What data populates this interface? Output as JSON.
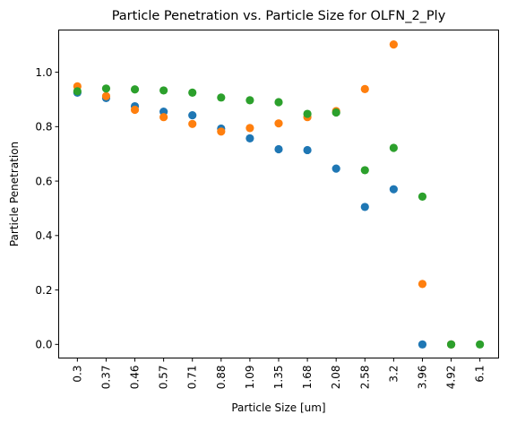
{
  "chart_data": {
    "type": "scatter",
    "title": "Particle Penetration vs. Particle Size for OLFN_2_Ply",
    "xlabel": "Particle Size [um]",
    "ylabel": "Particle Penetration",
    "categories": [
      "0.3",
      "0.37",
      "0.46",
      "0.57",
      "0.71",
      "0.88",
      "1.09",
      "1.35",
      "1.68",
      "2.08",
      "2.58",
      "3.2",
      "3.96",
      "4.92",
      "6.1"
    ],
    "yticks": [
      "0.0",
      "0.2",
      "0.4",
      "0.6",
      "0.8",
      "1.0"
    ],
    "ylim": [
      -0.05,
      1.155
    ],
    "grid": false,
    "series": [
      {
        "color": "#1f77b4",
        "values": [
          0.925,
          0.905,
          0.875,
          0.855,
          0.842,
          0.793,
          0.757,
          0.717,
          0.714,
          0.646,
          0.505,
          0.57,
          0.0,
          0.0,
          null
        ]
      },
      {
        "color": "#ff7f0e",
        "values": [
          0.948,
          0.912,
          0.862,
          0.835,
          0.81,
          0.782,
          0.795,
          0.812,
          0.835,
          0.857,
          0.938,
          1.102,
          0.222,
          0.0,
          null
        ]
      },
      {
        "color": "#2ca02c",
        "values": [
          0.93,
          0.94,
          0.937,
          0.933,
          0.925,
          0.907,
          0.897,
          0.89,
          0.847,
          0.852,
          0.64,
          0.722,
          0.543,
          0.0,
          0.0
        ]
      }
    ]
  }
}
